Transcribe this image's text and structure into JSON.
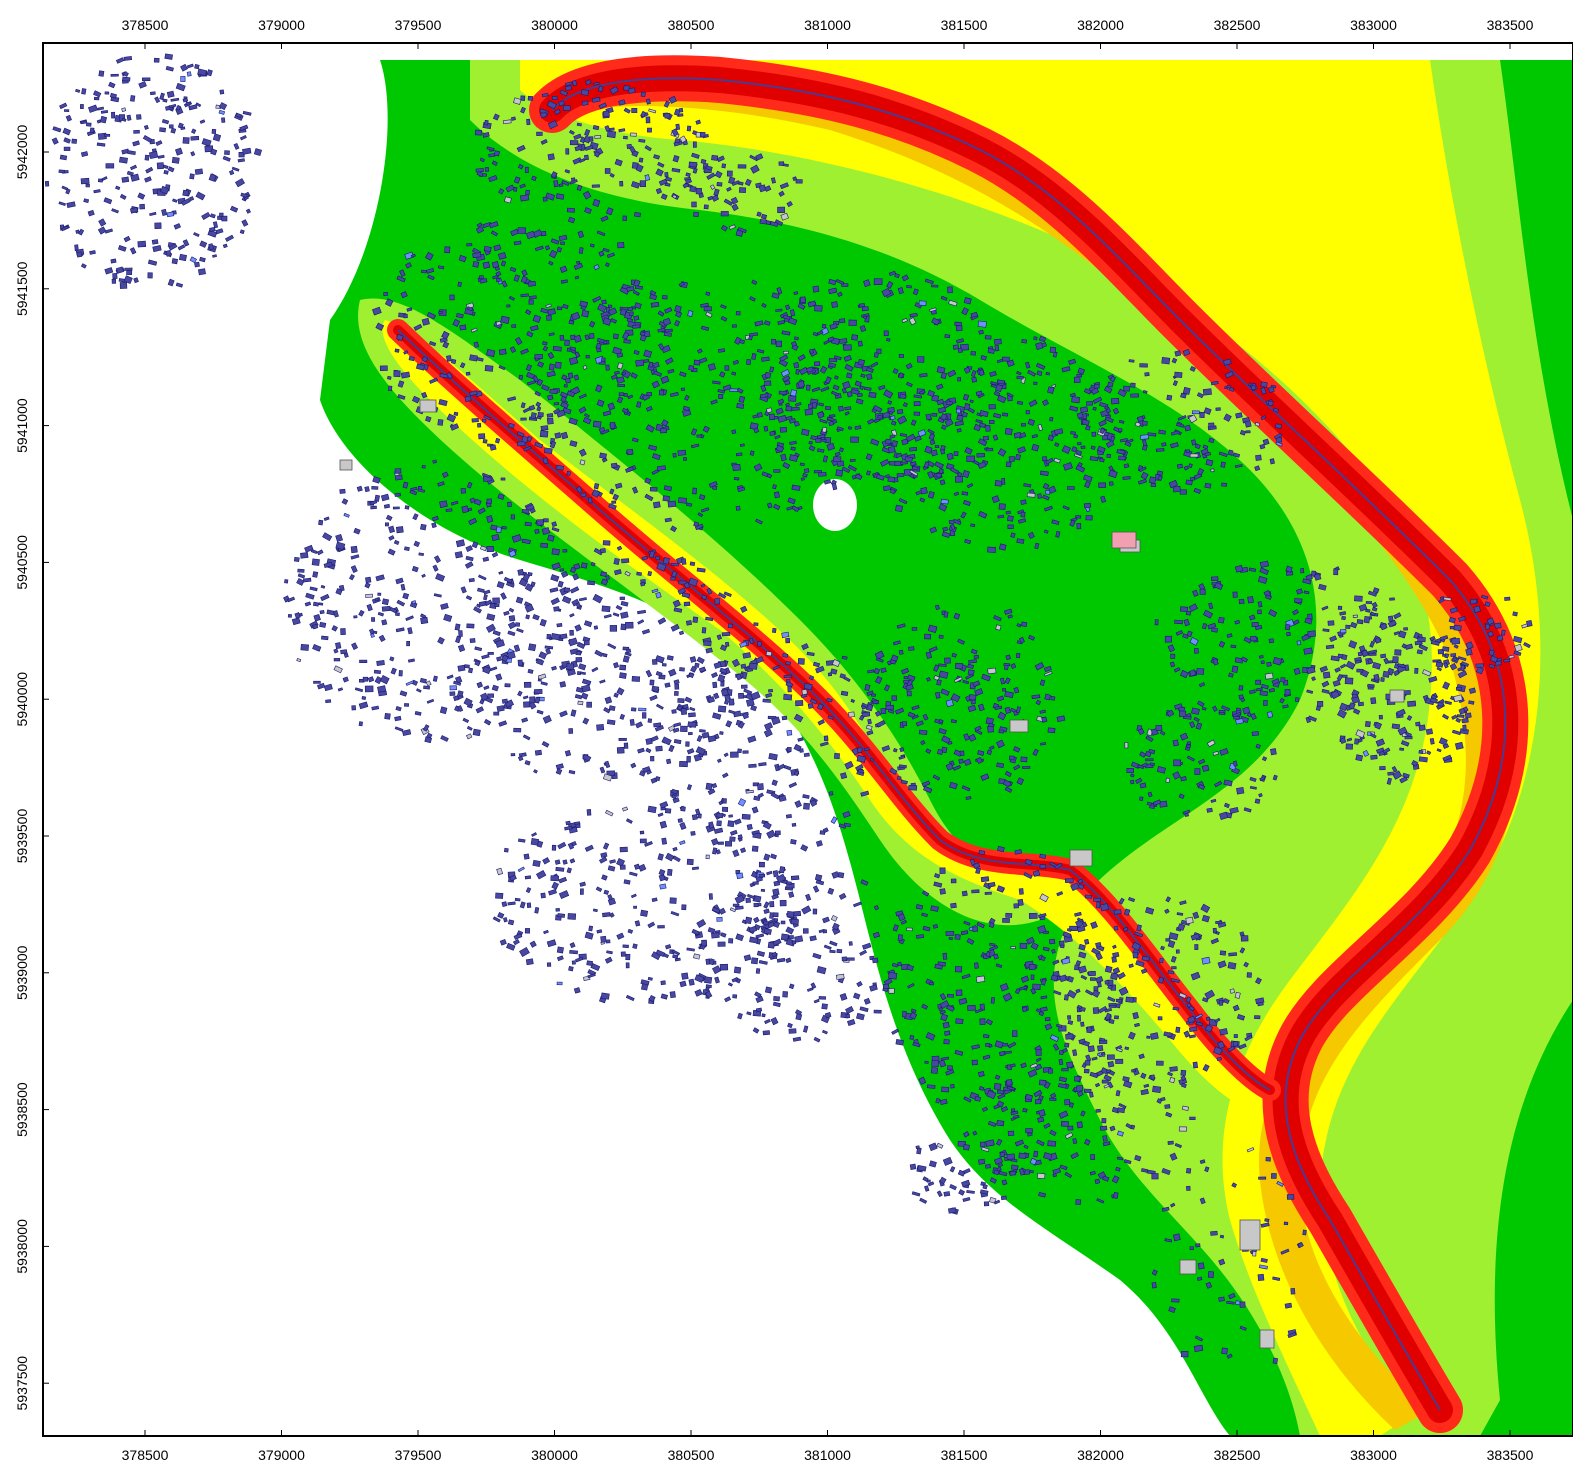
{
  "map": {
    "x_ticks": [
      "378500",
      "379000",
      "379500",
      "380000",
      "380500",
      "381000",
      "381500",
      "382000",
      "382500",
      "383000",
      "383500"
    ],
    "y_ticks": [
      "5942000",
      "5941500",
      "5941000",
      "5940500",
      "5940000",
      "5939500",
      "5939000",
      "5938500",
      "5938000",
      "5937500"
    ],
    "colors": {
      "frame": "#000000",
      "background": "#ffffff",
      "zone_green_dark": "#00c800",
      "zone_green_mid": "#22cc33",
      "zone_green_light": "#a0f032",
      "zone_yellow": "#ffff00",
      "zone_orange": "#f5c800",
      "zone_red_light": "#ff2a1a",
      "zone_red": "#e00000",
      "road_line": "#4a3a90",
      "building_stroke": "#1a1a70",
      "building_fill": "#4848a0",
      "building_gray": "#c8c8c8",
      "building_blue": "#7090ff",
      "building_pink": "#f0a0b0"
    }
  }
}
